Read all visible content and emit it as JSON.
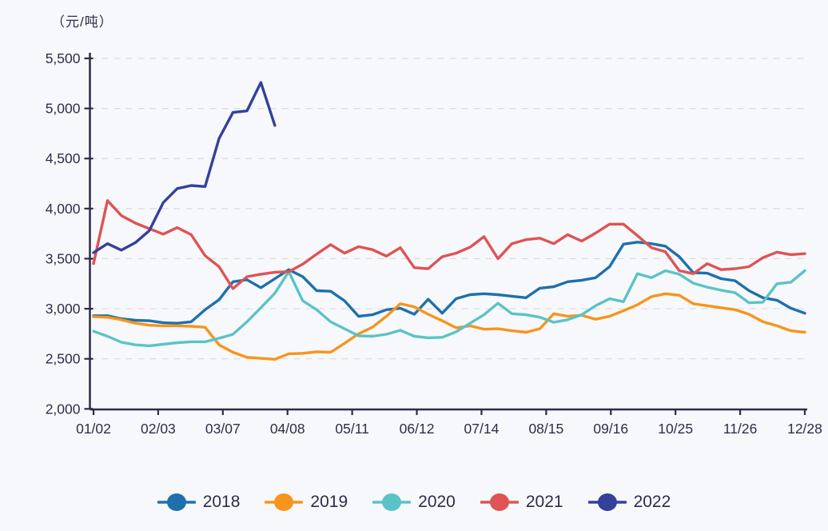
{
  "page": {
    "background": "#f7f8fb",
    "text_color": "#2e2c4d",
    "grid_color": "#d9dade",
    "axis_color": "#2d2b47"
  },
  "chart_data": {
    "type": "line",
    "title": "（元/吨）",
    "xlabel": "",
    "ylabel": "（元/吨）",
    "x_tick_labels": [
      "01/02",
      "02/03",
      "03/07",
      "04/08",
      "05/11",
      "06/12",
      "07/14",
      "08/15",
      "09/16",
      "10/25",
      "11/26",
      "12/28"
    ],
    "y_tick_labels": [
      "2,000",
      "2,500",
      "3,000",
      "3,500",
      "4,000",
      "4,500",
      "5,000",
      "5,500"
    ],
    "ylim": [
      2000,
      5500
    ],
    "y_interval": 500,
    "grid": "horizontal-dashed",
    "legend_position": "bottom",
    "x_total_points": 52,
    "series": [
      {
        "name": "2018",
        "color": "#1e70ad",
        "values": [
          2930,
          2930,
          2900,
          2885,
          2880,
          2860,
          2855,
          2870,
          2990,
          3090,
          3270,
          3290,
          3210,
          3300,
          3390,
          3320,
          3180,
          3175,
          3080,
          2925,
          2940,
          2990,
          3005,
          2945,
          3095,
          2955,
          3100,
          3140,
          3150,
          3140,
          3125,
          3110,
          3205,
          3220,
          3270,
          3285,
          3310,
          3420,
          3645,
          3665,
          3650,
          3625,
          3520,
          3360,
          3355,
          3300,
          3280,
          3180,
          3110,
          3085,
          3005,
          2955
        ]
      },
      {
        "name": "2019",
        "color": "#f7941d",
        "values": [
          2920,
          2915,
          2890,
          2855,
          2835,
          2830,
          2830,
          2825,
          2815,
          2640,
          2565,
          2515,
          2505,
          2495,
          2550,
          2555,
          2570,
          2565,
          2655,
          2750,
          2815,
          2925,
          3050,
          3020,
          2945,
          2880,
          2810,
          2830,
          2795,
          2800,
          2780,
          2765,
          2800,
          2950,
          2925,
          2935,
          2895,
          2925,
          2980,
          3040,
          3120,
          3150,
          3135,
          3050,
          3030,
          3010,
          2990,
          2945,
          2870,
          2830,
          2780,
          2765
        ]
      },
      {
        "name": "2020",
        "color": "#5bc3c7",
        "values": [
          2775,
          2725,
          2665,
          2640,
          2630,
          2645,
          2660,
          2670,
          2670,
          2705,
          2745,
          2870,
          3010,
          3155,
          3370,
          3080,
          2990,
          2870,
          2800,
          2730,
          2725,
          2745,
          2785,
          2725,
          2710,
          2715,
          2770,
          2855,
          2940,
          3055,
          2950,
          2940,
          2915,
          2865,
          2890,
          2940,
          3030,
          3100,
          3070,
          3350,
          3310,
          3380,
          3345,
          3255,
          3215,
          3185,
          3160,
          3060,
          3065,
          3250,
          3265,
          3380
        ]
      },
      {
        "name": "2021",
        "color": "#df5354",
        "values": [
          3450,
          4080,
          3930,
          3855,
          3800,
          3745,
          3810,
          3740,
          3530,
          3420,
          3200,
          3320,
          3345,
          3365,
          3370,
          3445,
          3545,
          3640,
          3555,
          3620,
          3590,
          3525,
          3610,
          3410,
          3400,
          3520,
          3555,
          3615,
          3720,
          3500,
          3650,
          3690,
          3705,
          3650,
          3740,
          3675,
          3755,
          3845,
          3845,
          3730,
          3610,
          3570,
          3380,
          3350,
          3450,
          3390,
          3400,
          3420,
          3510,
          3565,
          3540,
          3550
        ]
      },
      {
        "name": "2022",
        "color": "#33419b",
        "values": [
          3560,
          3650,
          3585,
          3660,
          3780,
          4060,
          4200,
          4230,
          4220,
          4700,
          4960,
          4975,
          5260,
          4830
        ]
      }
    ]
  }
}
